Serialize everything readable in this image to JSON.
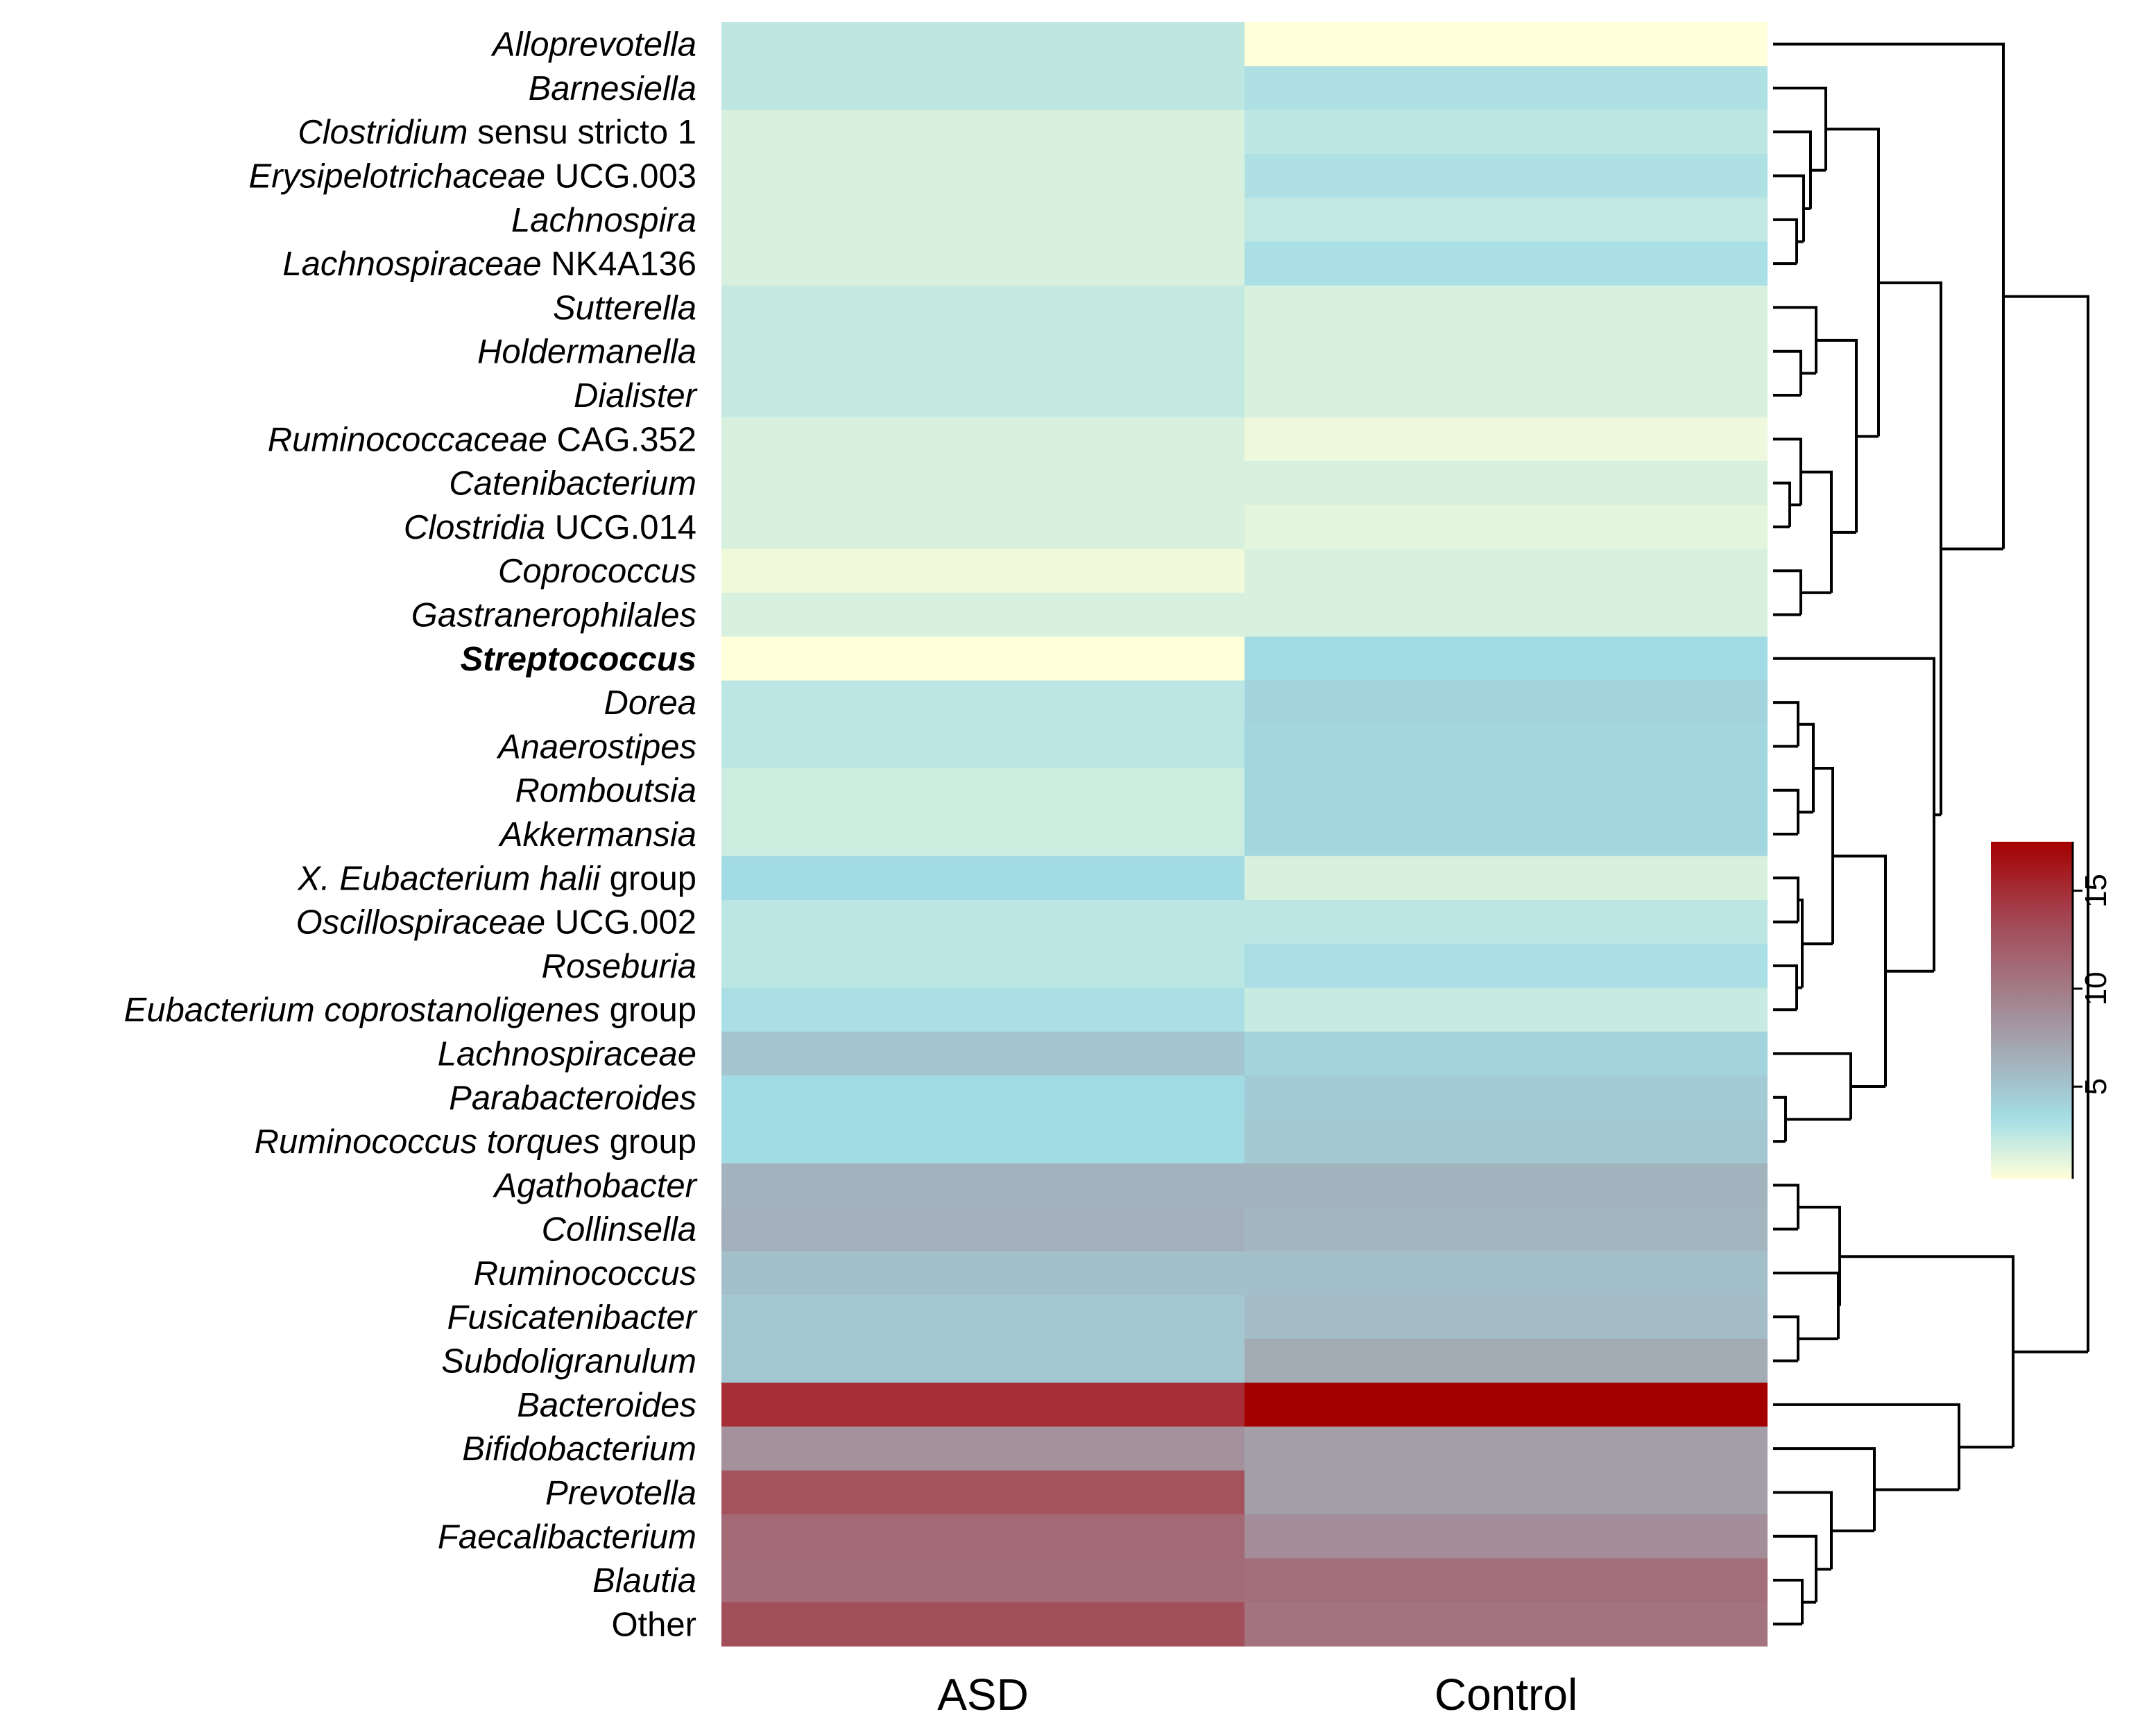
{
  "chart_data": {
    "type": "heatmap",
    "title": "",
    "columns": [
      "ASD",
      "Control"
    ],
    "rows": [
      {
        "name": [
          {
            "t": "Alloprevotella",
            "i": true
          }
        ],
        "values": [
          2.5,
          0.3
        ]
      },
      {
        "name": [
          {
            "t": "Barnesiella",
            "i": true
          }
        ],
        "values": [
          2.5,
          3.0
        ]
      },
      {
        "name": [
          {
            "t": "Clostridium",
            "i": true
          },
          {
            "t": " sensu stricto 1",
            "i": false
          }
        ],
        "values": [
          1.6,
          2.6
        ]
      },
      {
        "name": [
          {
            "t": "Erysipelotrichaceae",
            "i": true
          },
          {
            "t": " UCG.003",
            "i": false
          }
        ],
        "values": [
          1.6,
          3.0
        ]
      },
      {
        "name": [
          {
            "t": "Lachnospira",
            "i": true
          }
        ],
        "values": [
          1.6,
          2.4
        ]
      },
      {
        "name": [
          {
            "t": "Lachnospiraceae",
            "i": true
          },
          {
            "t": " NK4A136",
            "i": false
          }
        ],
        "values": [
          1.6,
          3.2
        ]
      },
      {
        "name": [
          {
            "t": "Sutterella",
            "i": true
          }
        ],
        "values": [
          2.3,
          1.6
        ]
      },
      {
        "name": [
          {
            "t": "Holdermanella",
            "i": true
          }
        ],
        "values": [
          2.3,
          1.6
        ]
      },
      {
        "name": [
          {
            "t": "Dialister",
            "i": true
          }
        ],
        "values": [
          2.3,
          1.6
        ]
      },
      {
        "name": [
          {
            "t": "Ruminococcaceae",
            "i": true
          },
          {
            "t": " CAG.352",
            "i": false
          }
        ],
        "values": [
          1.6,
          0.9
        ]
      },
      {
        "name": [
          {
            "t": "Catenibacterium",
            "i": true
          }
        ],
        "values": [
          1.6,
          1.6
        ]
      },
      {
        "name": [
          {
            "t": "Clostridia",
            "i": true
          },
          {
            "t": " UCG.014",
            "i": false
          }
        ],
        "values": [
          1.6,
          1.2
        ]
      },
      {
        "name": [
          {
            "t": "Coprococcus",
            "i": true
          }
        ],
        "values": [
          0.8,
          1.6
        ]
      },
      {
        "name": [
          {
            "t": "Gastranerophilales",
            "i": true
          }
        ],
        "values": [
          1.6,
          1.6
        ]
      },
      {
        "name": [
          {
            "t": "Streptococcus",
            "i": true,
            "b": true
          }
        ],
        "values": [
          0.2,
          3.5
        ]
      },
      {
        "name": [
          {
            "t": "Dorea",
            "i": true
          }
        ],
        "values": [
          2.6,
          4.0
        ]
      },
      {
        "name": [
          {
            "t": "Anaerostipes",
            "i": true
          }
        ],
        "values": [
          2.6,
          3.8
        ]
      },
      {
        "name": [
          {
            "t": "Romboutsia",
            "i": true
          }
        ],
        "values": [
          2.0,
          3.8
        ]
      },
      {
        "name": [
          {
            "t": "Akkermansia",
            "i": true
          }
        ],
        "values": [
          2.0,
          3.8
        ]
      },
      {
        "name": [
          {
            "t": "X. Eubacterium halii",
            "i": true
          },
          {
            "t": " group",
            "i": false
          }
        ],
        "values": [
          3.5,
          1.6
        ]
      },
      {
        "name": [
          {
            "t": "Oscillospiraceae",
            "i": true
          },
          {
            "t": " UCG.002",
            "i": false
          }
        ],
        "values": [
          2.6,
          2.6
        ]
      },
      {
        "name": [
          {
            "t": "Roseburia",
            "i": true
          }
        ],
        "values": [
          2.6,
          3.2
        ]
      },
      {
        "name": [
          {
            "t": "Eubacterium coprostanoligenes",
            "i": true
          },
          {
            "t": " group",
            "i": false
          }
        ],
        "values": [
          3.2,
          2.2
        ]
      },
      {
        "name": [
          {
            "t": "Lachnospiraceae",
            "i": true
          }
        ],
        "values": [
          5.0,
          4.0
        ]
      },
      {
        "name": [
          {
            "t": "Parabacteroides",
            "i": true
          }
        ],
        "values": [
          3.5,
          4.6
        ]
      },
      {
        "name": [
          {
            "t": "Ruminococcus torques",
            "i": true
          },
          {
            "t": " group",
            "i": false
          }
        ],
        "values": [
          3.5,
          4.8
        ]
      },
      {
        "name": [
          {
            "t": "Agathobacter",
            "i": true
          }
        ],
        "values": [
          6.2,
          6.2
        ]
      },
      {
        "name": [
          {
            "t": "Collinsella",
            "i": true
          }
        ],
        "values": [
          6.4,
          6.0
        ]
      },
      {
        "name": [
          {
            "t": "Ruminococcus",
            "i": true
          }
        ],
        "values": [
          5.4,
          5.4
        ]
      },
      {
        "name": [
          {
            "t": "Fusicatenibacter",
            "i": true
          }
        ],
        "values": [
          4.8,
          5.6
        ]
      },
      {
        "name": [
          {
            "t": "Subdoligranulum",
            "i": true
          }
        ],
        "values": [
          4.8,
          6.8
        ]
      },
      {
        "name": [
          {
            "t": "Bacteroides",
            "i": true
          }
        ],
        "values": [
          15.0,
          17.5
        ]
      },
      {
        "name": [
          {
            "t": "Bifidobacterium",
            "i": true
          }
        ],
        "values": [
          8.5,
          7.6
        ]
      },
      {
        "name": [
          {
            "t": "Prevotella",
            "i": true
          }
        ],
        "values": [
          12.8,
          7.6
        ]
      },
      {
        "name": [
          {
            "t": "Faecalibacterium",
            "i": true
          }
        ],
        "values": [
          11.2,
          8.8
        ]
      },
      {
        "name": [
          {
            "t": "Blautia",
            "i": true
          }
        ],
        "values": [
          11.0,
          10.8
        ]
      },
      {
        "name": [
          {
            "t": "Other",
            "i": false
          }
        ],
        "values": [
          13.0,
          10.5
        ]
      }
    ],
    "colorbar": {
      "ticks": [
        5,
        10,
        15
      ],
      "range": [
        0.3,
        17.5
      ],
      "colors": [
        "#ffffd9",
        "#a3dde6",
        "#a34451",
        "#a50000"
      ]
    },
    "dendrogram": "hierarchical clustering of rows (shown at right)"
  }
}
